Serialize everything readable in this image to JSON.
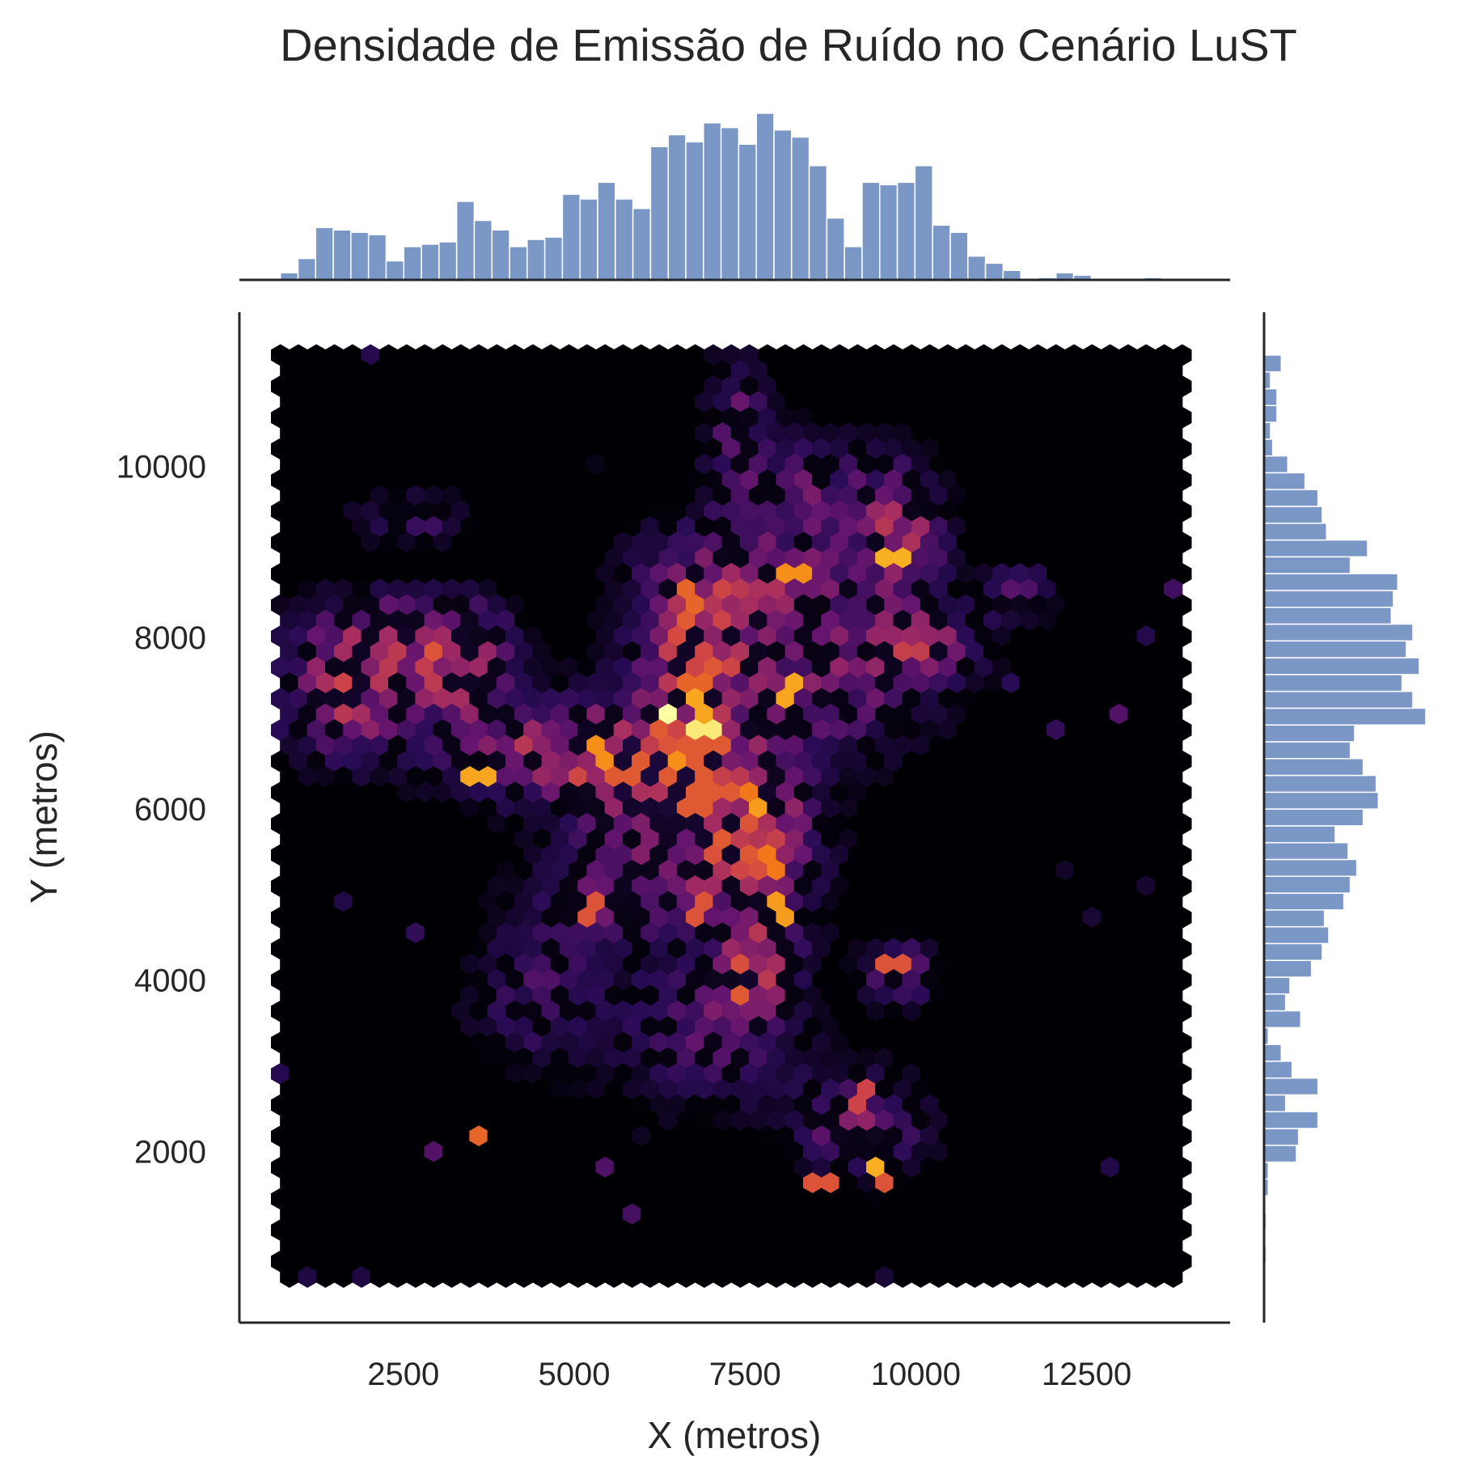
{
  "chart_data": {
    "type": "heatmap",
    "title": "Densidade de Emissão de Ruído no Cenário LuST",
    "xlabel": "X (metros)",
    "ylabel": "Y (metros)",
    "xlim": [
      100,
      14600
    ],
    "ylim": [
      0,
      11800
    ],
    "xticks": [
      2500,
      5000,
      7500,
      10000,
      12500
    ],
    "yticks": [
      2000,
      4000,
      6000,
      8000,
      10000
    ],
    "grid": false,
    "colormap": "inferno",
    "hexbin": {
      "grid_xrange": [
        700,
        13900
      ],
      "grid_yrange": [
        500,
        11300
      ],
      "hotspots": [
        {
          "x": 6400,
          "y": 7050,
          "level": 1.0
        },
        {
          "x": 6900,
          "y": 6900,
          "level": 0.95
        },
        {
          "x": 6850,
          "y": 7200,
          "level": 0.8
        },
        {
          "x": 6500,
          "y": 6550,
          "level": 0.75
        },
        {
          "x": 8200,
          "y": 7350,
          "level": 0.8
        },
        {
          "x": 3600,
          "y": 6400,
          "level": 0.8
        },
        {
          "x": 5400,
          "y": 6650,
          "level": 0.75
        },
        {
          "x": 7700,
          "y": 6050,
          "level": 0.78
        },
        {
          "x": 7500,
          "y": 6200,
          "level": 0.7
        },
        {
          "x": 7900,
          "y": 5400,
          "level": 0.7
        },
        {
          "x": 8000,
          "y": 4800,
          "level": 0.78
        },
        {
          "x": 9650,
          "y": 8900,
          "level": 0.82
        },
        {
          "x": 9400,
          "y": 1850,
          "level": 0.82
        },
        {
          "x": 9500,
          "y": 1650,
          "level": 0.6
        },
        {
          "x": 8200,
          "y": 8750,
          "level": 0.75
        },
        {
          "x": 6700,
          "y": 8450,
          "level": 0.65
        },
        {
          "x": 6750,
          "y": 7500,
          "level": 0.65
        },
        {
          "x": 3600,
          "y": 2150,
          "level": 0.65
        },
        {
          "x": 9200,
          "y": 2600,
          "level": 0.55
        },
        {
          "x": 8600,
          "y": 1600,
          "level": 0.6
        },
        {
          "x": 9700,
          "y": 4200,
          "level": 0.6
        },
        {
          "x": 5300,
          "y": 4800,
          "level": 0.6
        },
        {
          "x": 6800,
          "y": 4850,
          "level": 0.6
        }
      ],
      "regions": [
        {
          "x": 1700,
          "y": 7300,
          "sx": 700,
          "sy": 500,
          "w": 0.45
        },
        {
          "x": 2400,
          "y": 8100,
          "sx": 900,
          "sy": 300,
          "w": 0.3
        },
        {
          "x": 3300,
          "y": 7700,
          "sx": 500,
          "sy": 400,
          "w": 0.45
        },
        {
          "x": 4100,
          "y": 6700,
          "sx": 800,
          "sy": 400,
          "w": 0.35
        },
        {
          "x": 5700,
          "y": 6500,
          "sx": 700,
          "sy": 500,
          "w": 0.5
        },
        {
          "x": 6700,
          "y": 6300,
          "sx": 700,
          "sy": 600,
          "w": 0.5
        },
        {
          "x": 6800,
          "y": 7900,
          "sx": 600,
          "sy": 600,
          "w": 0.45
        },
        {
          "x": 7700,
          "y": 5600,
          "sx": 600,
          "sy": 700,
          "w": 0.45
        },
        {
          "x": 7600,
          "y": 4100,
          "sx": 400,
          "sy": 400,
          "w": 0.45
        },
        {
          "x": 5800,
          "y": 5000,
          "sx": 900,
          "sy": 400,
          "w": 0.3
        },
        {
          "x": 8800,
          "y": 7500,
          "sx": 1000,
          "sy": 600,
          "w": 0.3
        },
        {
          "x": 7800,
          "y": 8700,
          "sx": 1200,
          "sy": 500,
          "w": 0.3
        },
        {
          "x": 9800,
          "y": 9200,
          "sx": 400,
          "sy": 500,
          "w": 0.4
        },
        {
          "x": 10200,
          "y": 7900,
          "sx": 500,
          "sy": 300,
          "w": 0.35
        },
        {
          "x": 11500,
          "y": 8500,
          "sx": 300,
          "sy": 200,
          "w": 0.35
        },
        {
          "x": 9200,
          "y": 2300,
          "sx": 600,
          "sy": 400,
          "w": 0.35
        },
        {
          "x": 9800,
          "y": 4100,
          "sx": 350,
          "sy": 250,
          "w": 0.35
        },
        {
          "x": 7400,
          "y": 10600,
          "sx": 300,
          "sy": 500,
          "w": 0.25
        },
        {
          "x": 7000,
          "y": 3400,
          "sx": 900,
          "sy": 600,
          "w": 0.25
        },
        {
          "x": 4500,
          "y": 3800,
          "sx": 700,
          "sy": 600,
          "w": 0.2
        },
        {
          "x": 2600,
          "y": 9400,
          "sx": 500,
          "sy": 200,
          "w": 0.25
        },
        {
          "x": 8400,
          "y": 9800,
          "sx": 800,
          "sy": 400,
          "w": 0.25
        }
      ]
    },
    "marginal_x": {
      "bin_edges_range": [
        700,
        13600
      ],
      "counts": [
        3,
        9,
        22,
        21,
        20,
        19,
        8,
        14,
        15,
        16,
        33,
        25,
        21,
        14,
        17,
        18,
        36,
        34,
        41,
        34,
        30,
        56,
        61,
        58,
        66,
        64,
        57,
        70,
        63,
        60,
        48,
        26,
        14,
        41,
        40,
        41,
        48,
        23,
        20,
        10,
        7,
        4,
        0,
        1,
        3,
        2,
        0,
        0,
        0,
        1
      ]
    },
    "marginal_y": {
      "bin_edges_range": [
        500,
        11300
      ],
      "counts": [
        0,
        1,
        0,
        1,
        0,
        2,
        2,
        15,
        16,
        25,
        10,
        25,
        13,
        8,
        2,
        17,
        10,
        12,
        22,
        27,
        30,
        28,
        37,
        40,
        43,
        39,
        33,
        46,
        53,
        52,
        46,
        40,
        42,
        75,
        69,
        64,
        72,
        66,
        69,
        59,
        60,
        62,
        40,
        48,
        29,
        27,
        25,
        19,
        11,
        4,
        3,
        6,
        6,
        3,
        8
      ]
    }
  }
}
